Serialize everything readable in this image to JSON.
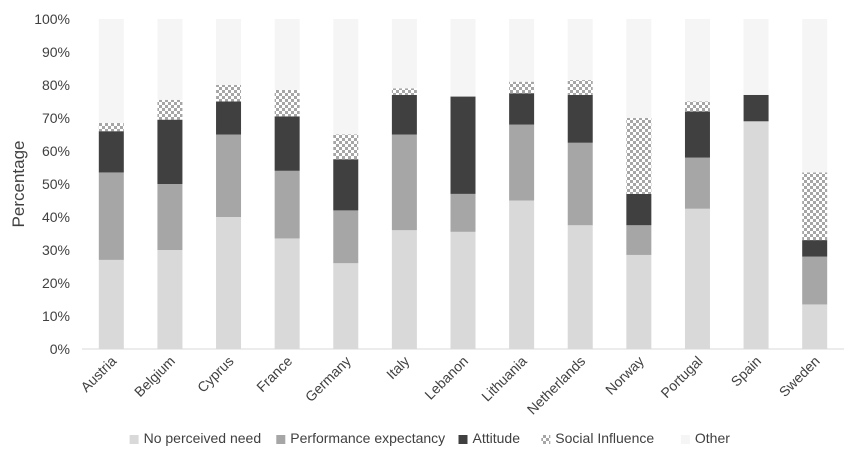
{
  "chart_data": {
    "type": "bar",
    "stacked": true,
    "title": "",
    "xlabel": "",
    "ylabel": "Percentage",
    "ylim": [
      0,
      100
    ],
    "y_ticks": [
      "0%",
      "10%",
      "20%",
      "30%",
      "40%",
      "50%",
      "60%",
      "70%",
      "80%",
      "90%",
      "100%"
    ],
    "grid": false,
    "legend_position": "bottom",
    "categories": [
      "Austria",
      "Belgium",
      "Cyprus",
      "France",
      "Germany",
      "Italy",
      "Lebanon",
      "Lithuania",
      "Netherlands",
      "Norway",
      "Portugal",
      "Spain",
      "Sweden"
    ],
    "series": [
      {
        "name": "No perceived need",
        "color": "#d9d9d9",
        "pattern": "solid",
        "values": [
          27,
          30,
          40,
          33.5,
          26,
          36,
          35.5,
          45,
          37.5,
          28.5,
          42.5,
          69,
          13.5
        ]
      },
      {
        "name": "Performance expectancy",
        "color": "#a6a6a6",
        "pattern": "solid",
        "values": [
          26.5,
          20,
          25,
          20.5,
          16,
          29,
          11.5,
          23,
          25,
          9,
          15.5,
          0,
          14.5
        ]
      },
      {
        "name": "Attitude",
        "color": "#404040",
        "pattern": "solid",
        "values": [
          12.5,
          19.5,
          10,
          16.5,
          15.5,
          12,
          29.5,
          9.5,
          14.5,
          9.5,
          14,
          8,
          5
        ]
      },
      {
        "name": "Social Influence",
        "color": "#bfbfbf",
        "pattern": "checker",
        "values": [
          2.5,
          6,
          5,
          8,
          7.5,
          2,
          0,
          3.5,
          4.5,
          23,
          3,
          0,
          20.5
        ]
      },
      {
        "name": "Other",
        "color": "#f5f5f5",
        "pattern": "solid",
        "values": [
          31.5,
          24.5,
          20,
          21.5,
          35,
          21,
          23.5,
          19,
          18.5,
          30,
          25,
          23,
          46.5
        ]
      }
    ]
  }
}
